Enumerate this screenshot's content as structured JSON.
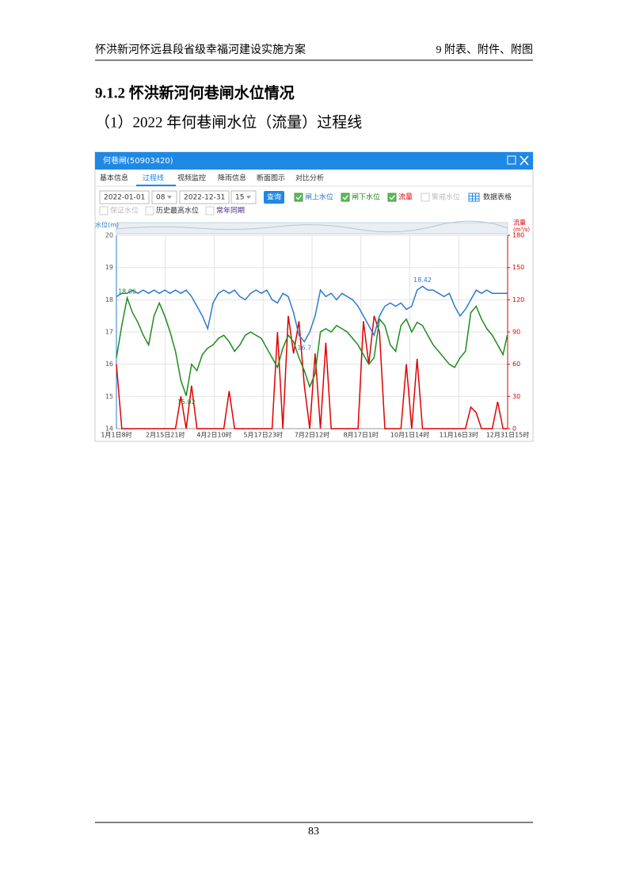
{
  "header": {
    "title": "怀洪新河怀远县段省级幸福河建设实施方案",
    "chapter": "9 附表、附件、附图"
  },
  "section_title": "9.1.2  怀洪新河何巷闸水位情况",
  "caption": "（1）2022 年何巷闸水位（流量）过程线",
  "screenshot": {
    "window_title": "何巷闸(50903420)",
    "tabs": [
      "基本信息",
      "过程线",
      "视频监控",
      "降雨信息",
      "断面图示",
      "对比分析"
    ],
    "start_date": "2022-01-01",
    "start_hour": "08",
    "end_date": "2022-12-31",
    "end_hour": "15",
    "query_button": "查询",
    "warning_level": "警戒水位",
    "table_button": "数据表格",
    "options": [
      "保证水位",
      "历史最高水位",
      "常年同期"
    ]
  },
  "chart_data": {
    "type": "line",
    "y_label": "水位(m)",
    "y2_label": "流量",
    "y2_unit": "(m³/s)",
    "show_extremes": true,
    "x": [
      0,
      5,
      10,
      15,
      20,
      25,
      30,
      35,
      40,
      45,
      50,
      55,
      60,
      65,
      70,
      75,
      80,
      85,
      90,
      95,
      100,
      105,
      110,
      115,
      120,
      125,
      130,
      135,
      140,
      145,
      150,
      155,
      160,
      165,
      170,
      175,
      180,
      185,
      190,
      195,
      200,
      205,
      210,
      215,
      220,
      225,
      230,
      235,
      240,
      245,
      250,
      255,
      260,
      265,
      270,
      275,
      280,
      285,
      290,
      295,
      300,
      305,
      310,
      315,
      320,
      325,
      330,
      335,
      340,
      345,
      350,
      355,
      360,
      364
    ],
    "xlim": [
      0,
      364.3
    ],
    "xticks": [
      {
        "value": 0,
        "label": "1月1日8时"
      },
      {
        "value": 45.54,
        "label": "2月15日21时"
      },
      {
        "value": 91.08,
        "label": "4月2日10时"
      },
      {
        "value": 136.6,
        "label": "5月17日23时"
      },
      {
        "value": 182.17,
        "label": "7月2日12时"
      },
      {
        "value": 227.7,
        "label": "8月17日1时"
      },
      {
        "value": 273.25,
        "label": "10月1日14时"
      },
      {
        "value": 318.8,
        "label": "11月16日3时"
      },
      {
        "value": 364.3,
        "label": "12月31日15时"
      }
    ],
    "ylim": [
      14,
      20
    ],
    "yticks": [
      14,
      15,
      16,
      17,
      18,
      19,
      20
    ],
    "y2lim": [
      0,
      180
    ],
    "y2ticks": [
      0,
      30,
      60,
      90,
      120,
      150,
      180
    ],
    "series": [
      {
        "name": "闸上水位",
        "color": "#2b7bd0",
        "values": [
          18.1,
          18.2,
          18.2,
          18.3,
          18.2,
          18.3,
          18.2,
          18.3,
          18.2,
          18.3,
          18.2,
          18.3,
          18.2,
          18.3,
          18.1,
          17.8,
          17.5,
          17.1,
          17.9,
          18.2,
          18.3,
          18.2,
          18.3,
          18.1,
          18.0,
          18.2,
          18.3,
          18.2,
          18.3,
          18.0,
          17.9,
          18.2,
          18.1,
          17.6,
          16.9,
          16.7,
          17.0,
          17.5,
          18.3,
          18.1,
          18.2,
          18.0,
          18.2,
          18.1,
          18.0,
          17.8,
          17.5,
          17.2,
          16.9,
          17.5,
          17.8,
          17.9,
          17.8,
          17.9,
          17.7,
          17.8,
          18.3,
          18.42,
          18.3,
          18.3,
          18.2,
          18.1,
          18.2,
          17.8,
          17.5,
          17.7,
          18.0,
          18.3,
          18.2,
          18.3,
          18.2,
          18.2,
          18.2,
          18.2
        ]
      },
      {
        "name": "闸下水位",
        "color": "#1e8c1e",
        "values": [
          16.2,
          17.2,
          18.06,
          17.6,
          17.3,
          16.9,
          16.6,
          17.5,
          17.9,
          17.5,
          17.0,
          16.4,
          15.5,
          15.02,
          16.0,
          15.8,
          16.3,
          16.5,
          16.6,
          16.8,
          16.9,
          16.7,
          16.4,
          16.6,
          16.9,
          17.0,
          16.9,
          16.8,
          16.5,
          16.2,
          15.9,
          16.5,
          16.9,
          16.7,
          16.2,
          15.8,
          15.3,
          15.7,
          17.0,
          17.1,
          17.0,
          17.2,
          17.1,
          17.0,
          16.8,
          16.6,
          16.3,
          16.0,
          16.2,
          17.4,
          17.2,
          16.6,
          16.4,
          17.2,
          17.4,
          17.0,
          17.3,
          17.2,
          16.9,
          16.6,
          16.4,
          16.2,
          16.0,
          15.9,
          16.2,
          16.4,
          17.6,
          17.8,
          17.4,
          17.1,
          16.9,
          16.6,
          16.3,
          16.9
        ]
      },
      {
        "name": "流量",
        "color": "#e00000",
        "axis": "y2",
        "values": [
          60,
          0,
          0,
          0,
          0,
          0,
          0,
          0,
          0,
          0,
          0,
          0,
          30,
          0,
          40,
          0,
          0,
          0,
          0,
          0,
          0,
          35,
          0,
          0,
          0,
          0,
          0,
          0,
          0,
          0,
          90,
          0,
          105,
          70,
          100,
          40,
          0,
          70,
          0,
          80,
          0,
          0,
          0,
          0,
          0,
          0,
          100,
          60,
          105,
          90,
          0,
          0,
          0,
          0,
          60,
          0,
          65,
          0,
          0,
          0,
          0,
          0,
          0,
          0,
          0,
          0,
          20,
          15,
          0,
          0,
          0,
          25,
          0,
          0
        ]
      }
    ]
  },
  "page_number": "83"
}
